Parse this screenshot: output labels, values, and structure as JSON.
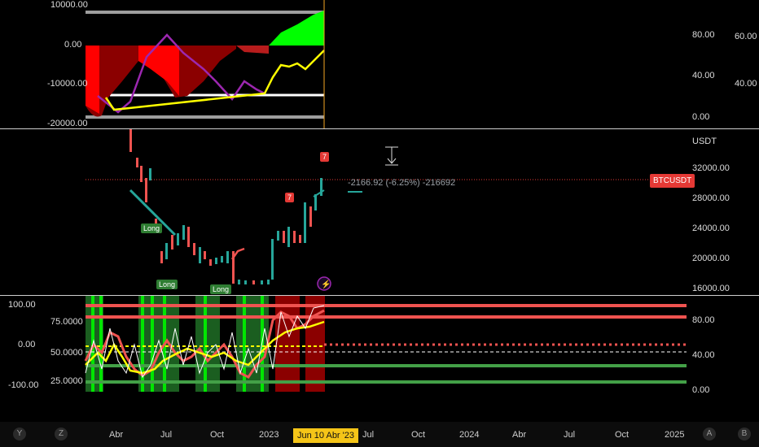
{
  "top_pane": {
    "left_axis": [
      "10000.00",
      "0.00",
      "-10000.00",
      "-20000.00"
    ],
    "right_axis_a": [
      "80.00",
      "40.00",
      "0.00"
    ],
    "right_axis_b": [
      "60.00",
      "40.00"
    ]
  },
  "price_pane": {
    "right_axis": [
      "32000.00",
      "28000.00",
      "24000.00",
      "20000.00",
      "16000.00"
    ],
    "currency": "USDT",
    "ticker": "BTCUSDT",
    "measure_text": "-2166.92 (-6.25%) -216692",
    "tags": [
      "Long",
      "Long",
      "Long",
      "7",
      "7"
    ]
  },
  "osc_pane": {
    "left_axis_a": [
      "100.00",
      "0.00",
      "-100.00"
    ],
    "left_axis_b": [
      "75.0000",
      "50.0000",
      "25.0000"
    ],
    "right_axis": [
      "80.00",
      "40.00",
      "0.00"
    ]
  },
  "time_axis": {
    "left_buttons": [
      "Y",
      "Z"
    ],
    "labels": [
      "Abr",
      "Jul",
      "Oct",
      "2023",
      "Jul",
      "Oct",
      "2024",
      "Abr",
      "Jul",
      "Oct",
      "2025"
    ],
    "cursor_label": "Jun 10 Abr '23",
    "right_buttons": [
      "A",
      "B"
    ]
  },
  "colors": {
    "up": "#26a69a",
    "down": "#ef5350",
    "accent": "#f5c518",
    "green_fill": "#00ff00",
    "red_fill": "#ff0000"
  }
}
